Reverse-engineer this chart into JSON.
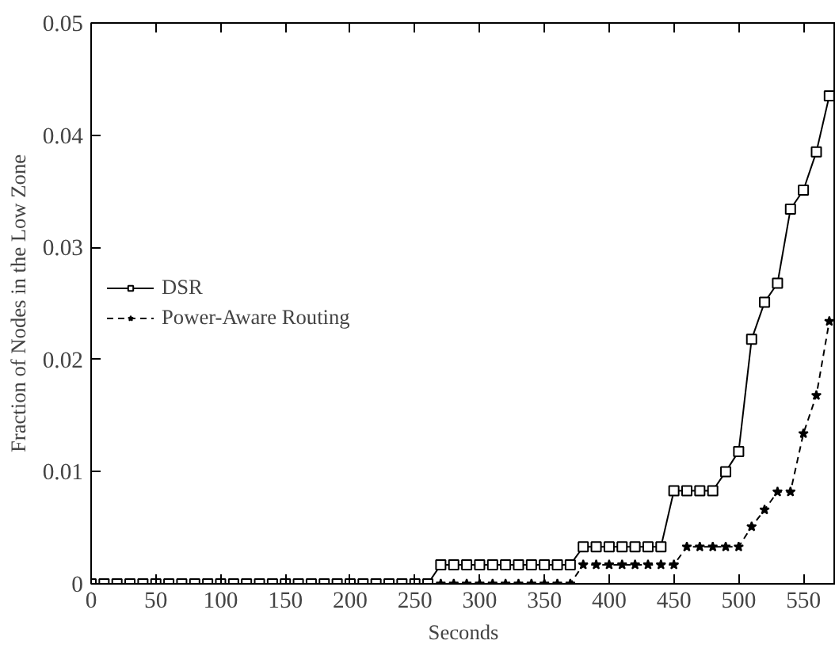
{
  "chart_data": {
    "type": "line",
    "xlabel": "Seconds",
    "ylabel": "Fraction of Nodes in the Low Zone",
    "xlim": [
      0,
      575
    ],
    "ylim": [
      0,
      0.05
    ],
    "xticks": [
      0,
      50,
      100,
      150,
      200,
      250,
      300,
      350,
      400,
      450,
      500,
      550
    ],
    "yticks": [
      0,
      0.01,
      0.02,
      0.03,
      0.04,
      0.05
    ],
    "grid": false,
    "legend": "left",
    "x": [
      0,
      10,
      20,
      30,
      40,
      50,
      60,
      70,
      80,
      90,
      100,
      110,
      120,
      130,
      140,
      150,
      160,
      170,
      180,
      190,
      200,
      210,
      220,
      230,
      240,
      250,
      260,
      270,
      280,
      290,
      300,
      310,
      320,
      330,
      340,
      350,
      360,
      370,
      380,
      390,
      400,
      410,
      420,
      430,
      440,
      450,
      460,
      470,
      480,
      490,
      500,
      510,
      520,
      530,
      540,
      550,
      560,
      570
    ],
    "series": [
      {
        "name": "DSR",
        "color": "#000000",
        "marker": "square",
        "line_style": "solid",
        "values": [
          0,
          0,
          0,
          0,
          0,
          0,
          0,
          0,
          0,
          0,
          0,
          0,
          0,
          0,
          0,
          0,
          0,
          0,
          0,
          0,
          0,
          0,
          0,
          0,
          0,
          0,
          0,
          0.0017,
          0.0017,
          0.0017,
          0.0017,
          0.0017,
          0.0017,
          0.0017,
          0.0017,
          0.0017,
          0.0017,
          0.0017,
          0.0033,
          0.0033,
          0.0033,
          0.0033,
          0.0033,
          0.0033,
          0.0033,
          0.0083,
          0.0083,
          0.0083,
          0.0083,
          0.01,
          0.0118,
          0.0218,
          0.0251,
          0.0268,
          0.0334,
          0.0351,
          0.0385,
          0.0435
        ]
      },
      {
        "name": "Power-Aware Routing",
        "color": "#000000",
        "marker": "star",
        "line_style": "dashed",
        "values": [
          0,
          0,
          0,
          0,
          0,
          0,
          0,
          0,
          0,
          0,
          0,
          0,
          0,
          0,
          0,
          0,
          0,
          0,
          0,
          0,
          0,
          0,
          0,
          0,
          0,
          0,
          0,
          0,
          0,
          0,
          0,
          0,
          0,
          0,
          0,
          0,
          0,
          0,
          0.0017,
          0.0017,
          0.0017,
          0.0017,
          0.0017,
          0.0017,
          0.0017,
          0.0017,
          0.0033,
          0.0033,
          0.0033,
          0.0033,
          0.0033,
          0.0051,
          0.0066,
          0.0082,
          0.0082,
          0.0134,
          0.0168,
          0.0234
        ]
      }
    ]
  }
}
